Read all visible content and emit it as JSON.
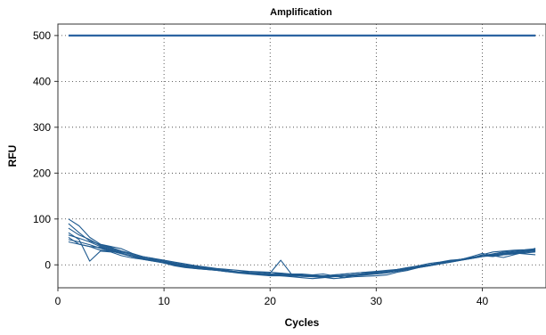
{
  "chart_data": {
    "type": "line",
    "title": "Amplification",
    "xlabel": "Cycles",
    "ylabel": "RFU",
    "xlim": [
      0,
      46
    ],
    "ylim": [
      -50,
      525
    ],
    "xticks": [
      0,
      10,
      20,
      30,
      40
    ],
    "yticks": [
      0,
      100,
      200,
      300,
      400,
      500
    ],
    "grid": true,
    "legend": "none",
    "colors": {
      "series": "#1f5a8f",
      "threshold": "#2b64a1"
    },
    "threshold": {
      "y": 500,
      "x_start": 1,
      "x_end": 45
    },
    "x": [
      1,
      2,
      3,
      4,
      5,
      6,
      7,
      8,
      9,
      10,
      11,
      12,
      13,
      14,
      15,
      16,
      17,
      18,
      19,
      20,
      21,
      22,
      23,
      24,
      25,
      26,
      27,
      28,
      29,
      30,
      31,
      32,
      33,
      34,
      35,
      36,
      37,
      38,
      39,
      40,
      41,
      42,
      43,
      44,
      45
    ],
    "series": [
      {
        "values": [
          100,
          85,
          60,
          45,
          40,
          35,
          25,
          18,
          14,
          8,
          2,
          -2,
          -5,
          -8,
          -10,
          -13,
          -15,
          -15,
          -16,
          -18,
          10,
          -20,
          -20,
          -22,
          -25,
          -22,
          -20,
          -18,
          -16,
          -15,
          -14,
          -10,
          -6,
          -2,
          3,
          6,
          10,
          12,
          15,
          22,
          28,
          30,
          32,
          33,
          35
        ]
      },
      {
        "values": [
          70,
          55,
          8,
          30,
          28,
          20,
          15,
          12,
          8,
          5,
          0,
          -5,
          -8,
          -10,
          -12,
          -15,
          -17,
          -18,
          -20,
          -20,
          -18,
          -22,
          -25,
          -22,
          -20,
          -24,
          -28,
          -22,
          -18,
          -16,
          -14,
          -10,
          -8,
          -4,
          0,
          4,
          8,
          12,
          16,
          20,
          18,
          22,
          25,
          28,
          30
        ]
      },
      {
        "values": [
          60,
          45,
          40,
          38,
          32,
          25,
          18,
          14,
          10,
          6,
          2,
          -2,
          -4,
          -7,
          -10,
          -12,
          -16,
          -18,
          -20,
          -22,
          -24,
          -24,
          -25,
          -26,
          -27,
          -30,
          -28,
          -26,
          -25,
          -24,
          -22,
          -16,
          -12,
          -6,
          -2,
          2,
          6,
          10,
          14,
          18,
          20,
          22,
          24,
          26,
          28
        ]
      },
      {
        "values": [
          50,
          45,
          40,
          32,
          30,
          25,
          20,
          15,
          12,
          8,
          4,
          0,
          -2,
          -5,
          -8,
          -10,
          -12,
          -14,
          -15,
          -16,
          -18,
          -20,
          -22,
          -24,
          -25,
          -22,
          -20,
          -18,
          -16,
          -14,
          -12,
          -10,
          -6,
          -3,
          0,
          4,
          8,
          12,
          16,
          20,
          24,
          28,
          30,
          32,
          34
        ]
      },
      {
        "values": [
          80,
          65,
          55,
          42,
          36,
          28,
          22,
          16,
          10,
          4,
          -2,
          -6,
          -8,
          -10,
          -12,
          -15,
          -18,
          -20,
          -22,
          -24,
          -24,
          -26,
          -28,
          -30,
          -28,
          -26,
          -25,
          -24,
          -22,
          -20,
          -18,
          -14,
          -10,
          -6,
          -2,
          2,
          6,
          10,
          14,
          18,
          22,
          24,
          26,
          24,
          22
        ]
      },
      {
        "values": [
          65,
          58,
          50,
          40,
          34,
          26,
          18,
          12,
          8,
          4,
          0,
          -4,
          -6,
          -9,
          -12,
          -14,
          -16,
          -18,
          -19,
          -20,
          -20,
          -21,
          -23,
          -24,
          -24,
          -24,
          -23,
          -21,
          -19,
          -17,
          -15,
          -12,
          -8,
          -4,
          0,
          4,
          8,
          12,
          16,
          20,
          22,
          26,
          28,
          30,
          32
        ]
      },
      {
        "values": [
          55,
          50,
          44,
          36,
          30,
          24,
          18,
          13,
          9,
          5,
          1,
          -3,
          -6,
          -9,
          -11,
          -13,
          -15,
          -17,
          -18,
          -20,
          -21,
          -23,
          -24,
          -25,
          -26,
          -26,
          -24,
          -22,
          -20,
          -18,
          -16,
          -12,
          -8,
          -4,
          0,
          3,
          7,
          11,
          15,
          19,
          22,
          25,
          27,
          29,
          31
        ]
      },
      {
        "values": [
          90,
          70,
          52,
          44,
          38,
          30,
          24,
          18,
          14,
          10,
          6,
          2,
          -2,
          -6,
          -10,
          -13,
          -16,
          -18,
          -20,
          -22,
          -23,
          -24,
          -25,
          -26,
          -26,
          -25,
          -24,
          -22,
          -20,
          -18,
          -15,
          -12,
          -8,
          -4,
          0,
          4,
          8,
          12,
          18,
          25,
          20,
          16,
          22,
          28,
          36
        ]
      }
    ]
  }
}
